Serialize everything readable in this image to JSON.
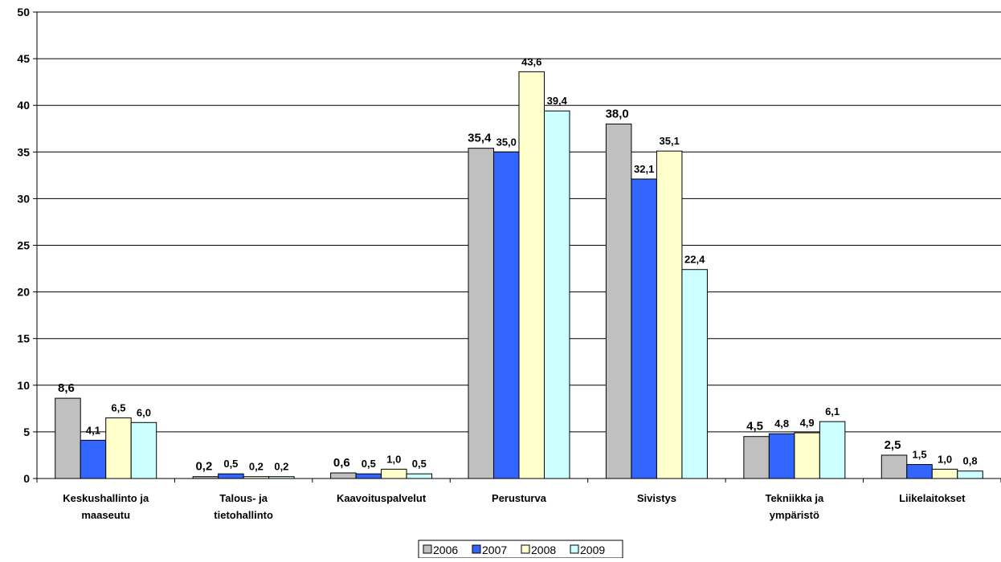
{
  "chart_data": {
    "type": "bar",
    "title": "",
    "xlabel": "",
    "ylabel": "",
    "ylim": [
      0,
      50
    ],
    "yticks": [
      "0",
      "5",
      "10",
      "15",
      "20",
      "25",
      "30",
      "35",
      "40",
      "45",
      "50"
    ],
    "grid": true,
    "legend_position": "bottom",
    "categories": [
      [
        "Keskushallinto ja",
        "maaseutu"
      ],
      [
        "Talous- ja",
        "tietohallinto"
      ],
      [
        "Kaavoituspalvelut"
      ],
      [
        "Perusturva"
      ],
      [
        "Sivistys"
      ],
      [
        "Tekniikka ja",
        "ympäristö"
      ],
      [
        "Liikelaitokset"
      ]
    ],
    "series": [
      {
        "name": "2006",
        "color": "#C0C0C0",
        "values": [
          8.6,
          0.2,
          0.6,
          35.4,
          38.0,
          4.5,
          2.5
        ],
        "labels": [
          "8,6",
          "0,2",
          "0,6",
          "35,4",
          "38,0",
          "4,5",
          "2,5"
        ]
      },
      {
        "name": "2007",
        "color": "#3366FF",
        "values": [
          4.1,
          0.5,
          0.5,
          35.0,
          32.1,
          4.8,
          1.5
        ],
        "labels": [
          "4,1",
          "0,5",
          "0,5",
          "35,0",
          "32,1",
          "4,8",
          "1,5"
        ]
      },
      {
        "name": "2008",
        "color": "#FFFFCC",
        "values": [
          6.5,
          0.2,
          1.0,
          43.6,
          35.1,
          4.9,
          1.0
        ],
        "labels": [
          "6,5",
          "0,2",
          "1,0",
          "43,6",
          "35,1",
          "4,9",
          "1,0"
        ]
      },
      {
        "name": "2009",
        "color": "#CCFFFF",
        "values": [
          6.0,
          0.2,
          0.5,
          39.4,
          22.4,
          6.1,
          0.8
        ],
        "labels": [
          "6,0",
          "0,2",
          "0,5",
          "39,4",
          "22,4",
          "6,1",
          "0,8"
        ]
      }
    ]
  }
}
